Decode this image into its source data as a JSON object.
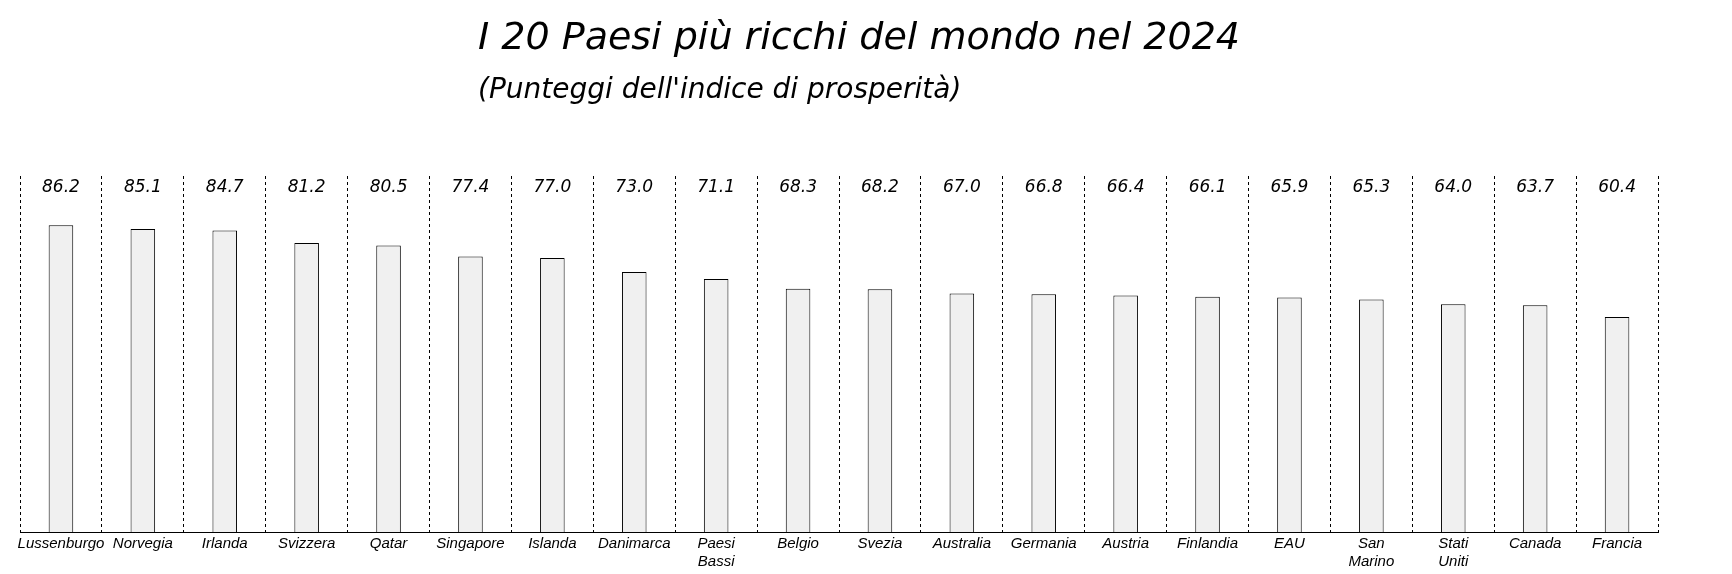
{
  "chart_data": {
    "type": "bar",
    "title": "I 20 Paesi più ricchi del mondo nel 2024",
    "subtitle": "(Punteggi dell'indice di prosperità)",
    "categories": [
      "Lussenburgo",
      "Norvegia",
      "Irlanda",
      "Svizzera",
      "Qatar",
      "Singapore",
      "Islanda",
      "Danimarca",
      "Paesi Bassi",
      "Belgio",
      "Svezia",
      "Australia",
      "Germania",
      "Austria",
      "Finlandia",
      "EAU",
      "San Marino",
      "Stati Uniti",
      "Canada",
      "Francia"
    ],
    "values": [
      86.2,
      85.1,
      84.7,
      81.2,
      80.5,
      77.4,
      77.0,
      73.0,
      71.1,
      68.3,
      68.2,
      67.0,
      66.8,
      66.4,
      66.1,
      65.9,
      65.3,
      64.0,
      63.7,
      60.4
    ],
    "value_labels": [
      "86.2",
      "85.1",
      "84.7",
      "81.2",
      "80.5",
      "77.4",
      "77.0",
      "73.0",
      "71.1",
      "68.3",
      "68.2",
      "67.0",
      "66.8",
      "66.4",
      "66.1",
      "65.9",
      "65.3",
      "64.0",
      "63.7",
      "60.4"
    ],
    "color": "#f0f0f0",
    "grid": "x",
    "legend": false,
    "tick_labels": "x"
  }
}
